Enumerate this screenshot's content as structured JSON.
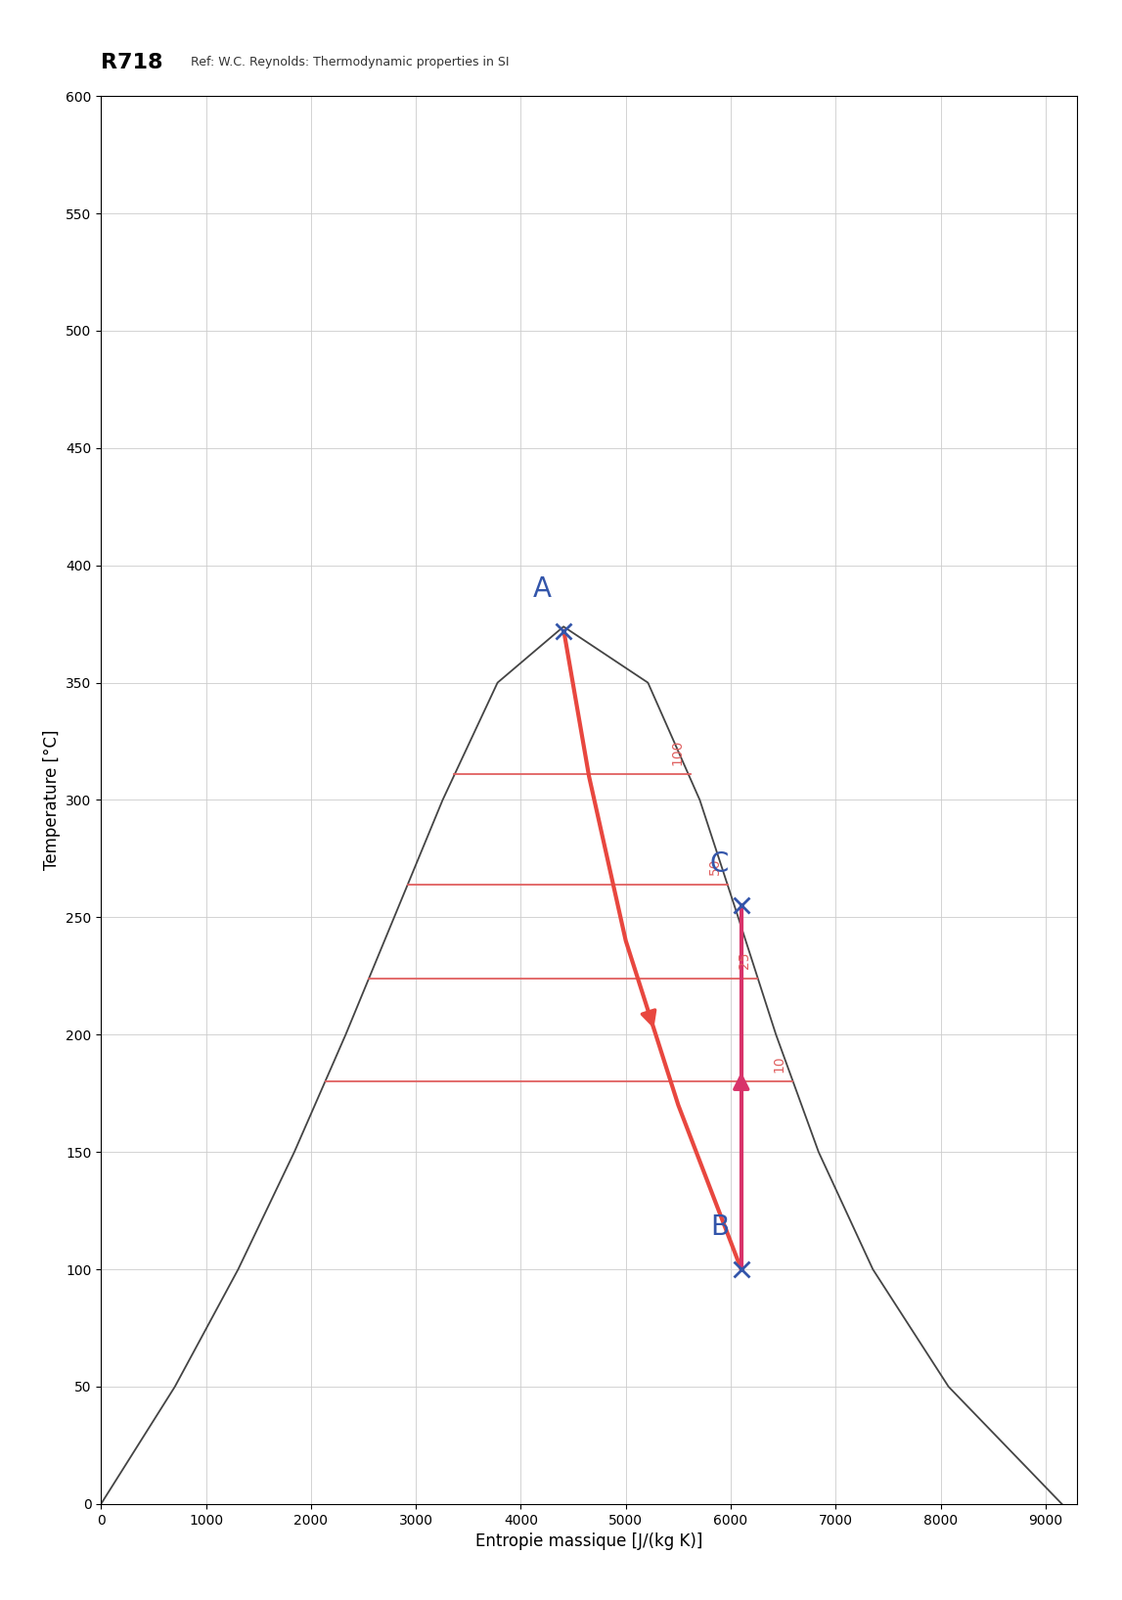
{
  "chart_data": {
    "type": "line",
    "title": "R718",
    "subtitle": "Ref: W.C. Reynolds: Thermodynamic properties in SI",
    "x_label": "Entropie massique [J/(kg K)]",
    "y_label": "Temperature [°C]",
    "xlim": [
      0,
      9300
    ],
    "ylim": [
      0,
      600
    ],
    "xticks": [
      0,
      1000,
      2000,
      3000,
      4000,
      5000,
      6000,
      7000,
      8000,
      9000
    ],
    "yticks": [
      0,
      50,
      100,
      150,
      200,
      250,
      300,
      350,
      400,
      450,
      500,
      550,
      600
    ],
    "grid": true,
    "series": [
      {
        "type": "line",
        "color": "#444444",
        "line_style": "solid",
        "x": [
          0,
          704,
          1307,
          1842,
          2331,
          2793,
          3255,
          3778,
          4407,
          5211,
          5705,
          6071,
          6431,
          6837,
          7354,
          8075,
          9155
        ],
        "values": [
          0,
          50,
          100,
          150,
          200,
          250,
          300,
          350,
          373.9,
          350,
          300,
          250,
          200,
          150,
          100,
          50,
          0
        ]
      },
      {
        "type": "line",
        "color": "#e06060",
        "line_style": "solid",
        "label": "100",
        "x": [
          3360,
          5615
        ],
        "values": [
          311,
          311
        ]
      },
      {
        "type": "line",
        "color": "#e06060",
        "line_style": "solid",
        "label": "50",
        "x": [
          2920,
          5975
        ],
        "values": [
          264,
          264
        ]
      },
      {
        "type": "line",
        "color": "#e06060",
        "line_style": "solid",
        "label": "25",
        "x": [
          2550,
          6255
        ],
        "values": [
          224,
          224
        ]
      },
      {
        "type": "line",
        "color": "#e06060",
        "line_style": "solid",
        "label": "10",
        "x": [
          2140,
          6585
        ],
        "values": [
          180,
          180
        ]
      },
      {
        "type": "line",
        "color": "#e8473f",
        "line_style": "solid",
        "marker": "arrow",
        "x": [
          4410,
          4650,
          5000,
          5500,
          6100
        ],
        "values": [
          372,
          310,
          240,
          170,
          100
        ]
      },
      {
        "type": "line",
        "color": "#d8336a",
        "line_style": "solid",
        "marker": "arrow",
        "x": [
          6100,
          6100
        ],
        "values": [
          100,
          255
        ]
      }
    ],
    "annotations": [
      {
        "text": "A",
        "x": 4410,
        "y": 372
      },
      {
        "text": "B",
        "x": 6100,
        "y": 100
      },
      {
        "text": "C",
        "x": 6100,
        "y": 255
      }
    ]
  }
}
